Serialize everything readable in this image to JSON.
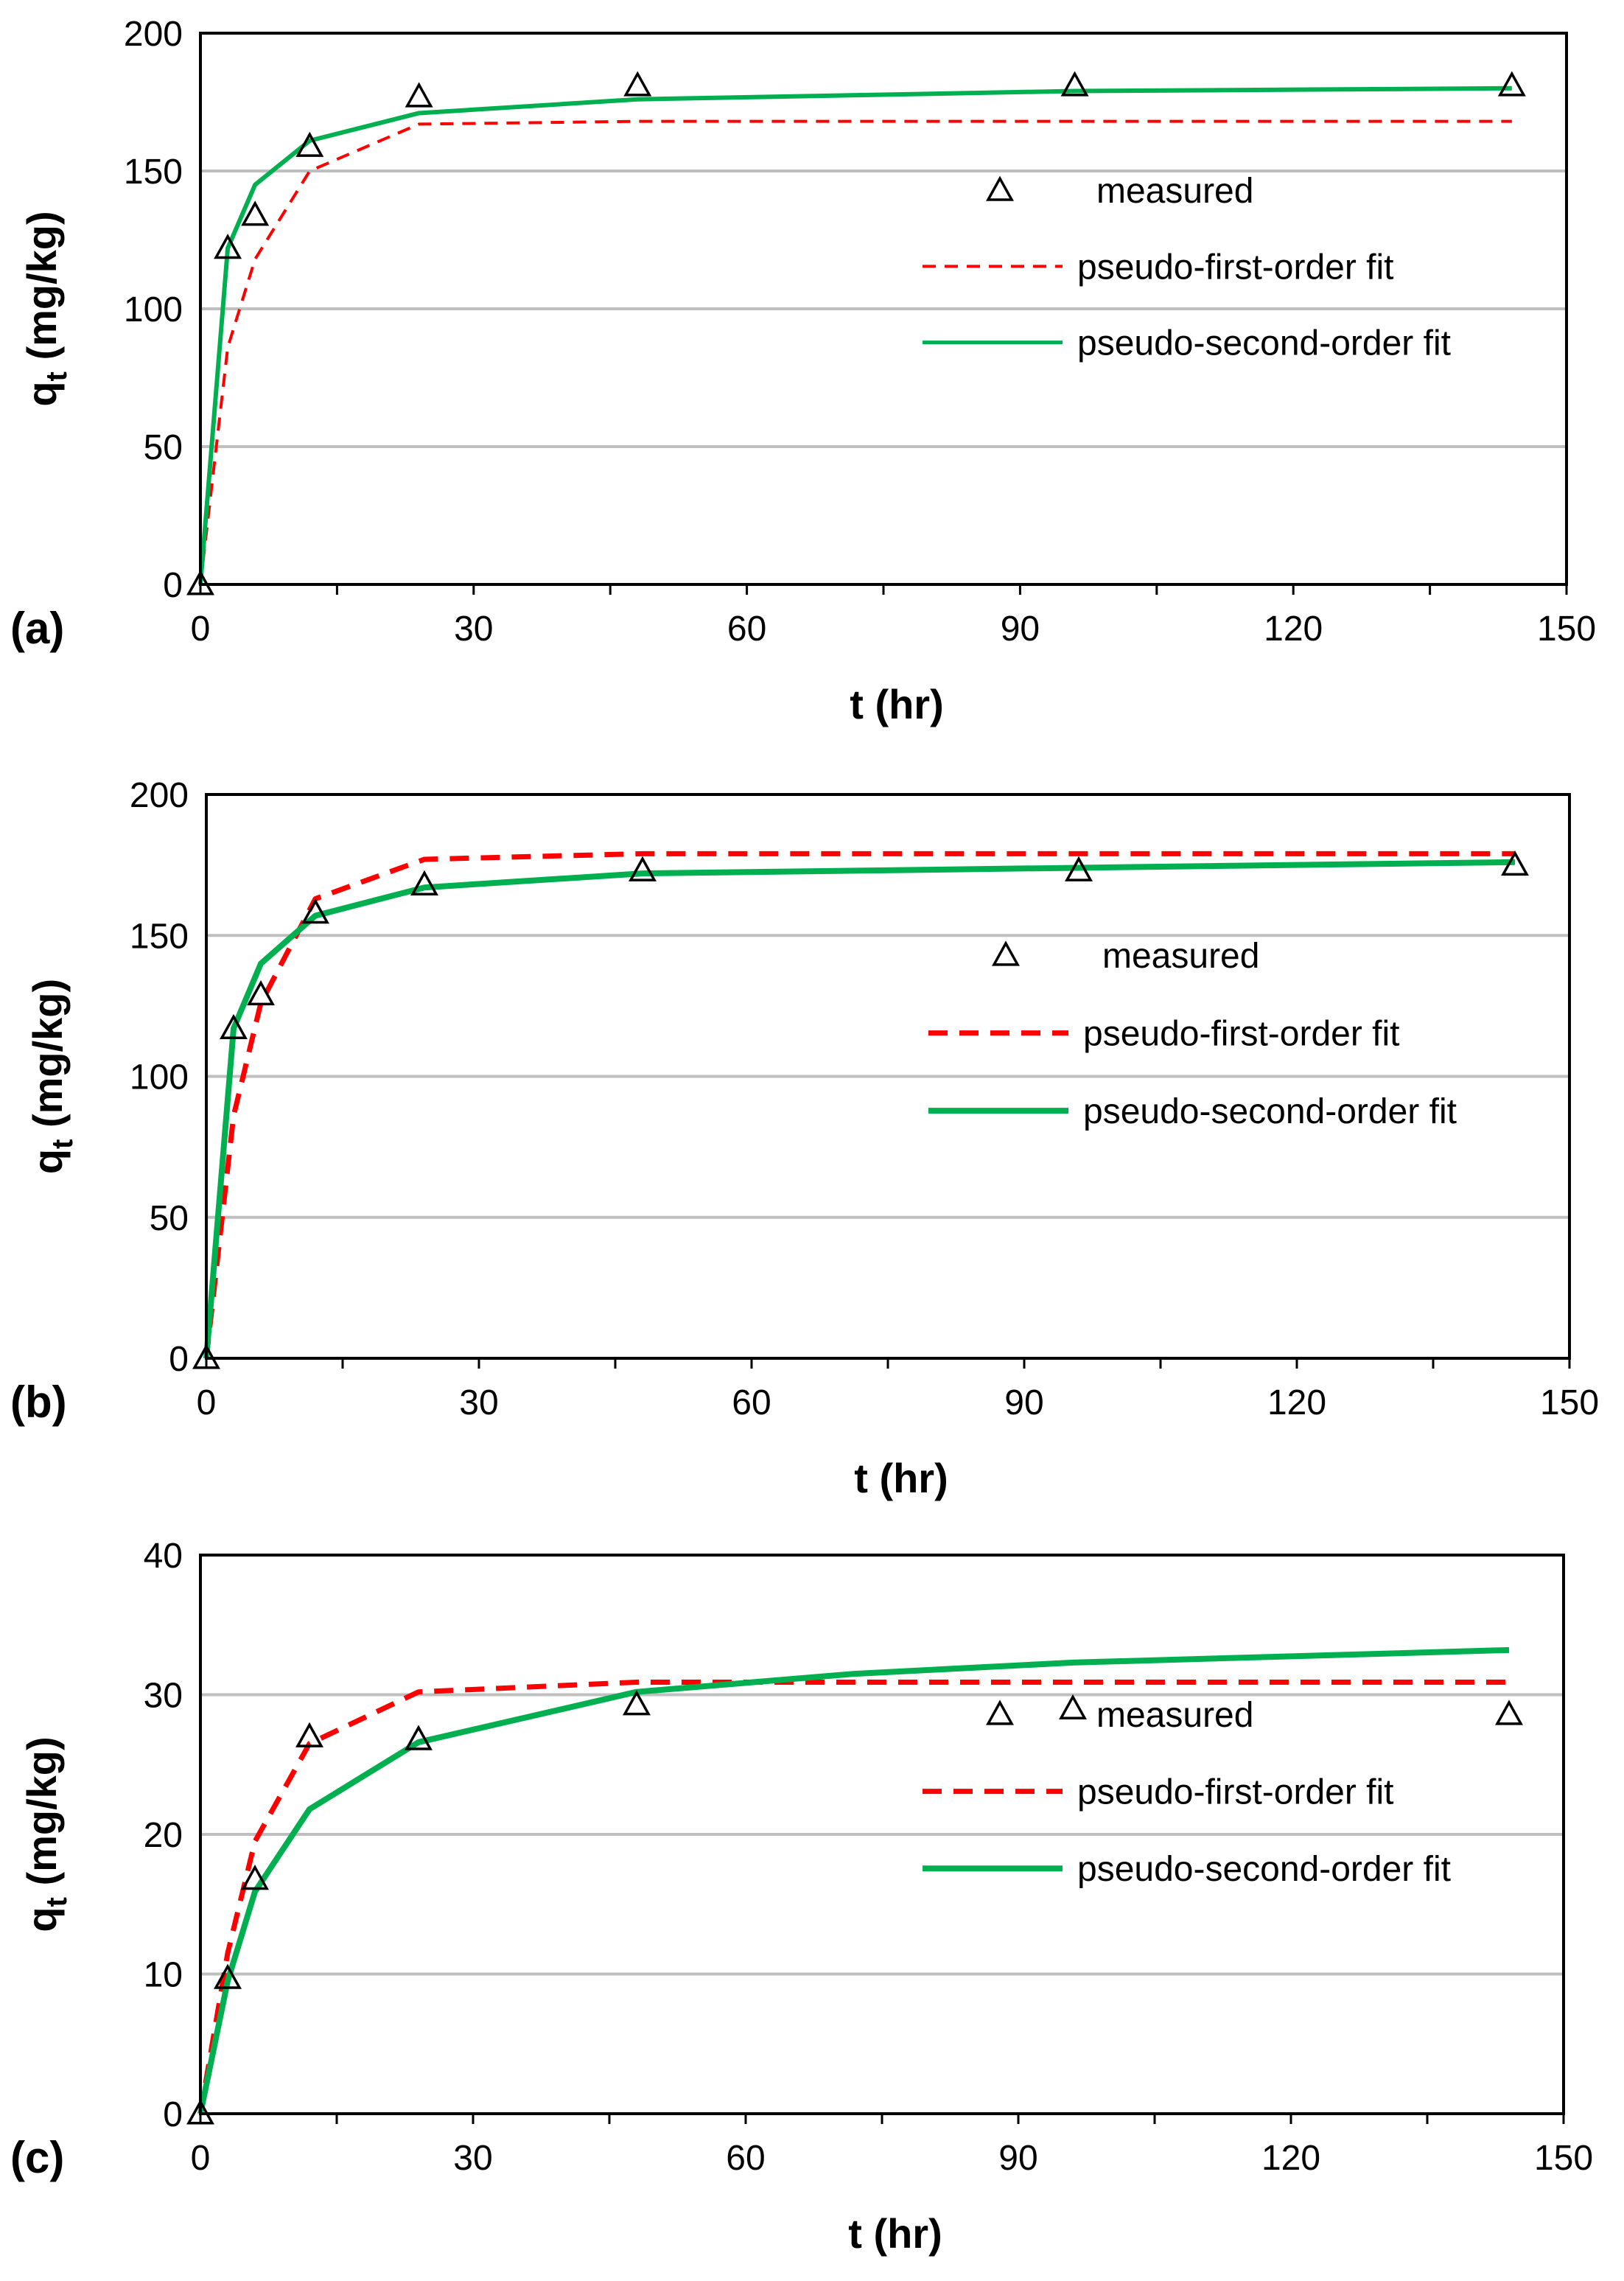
{
  "colors": {
    "measured": "#000000",
    "first_order": "#ff0000",
    "second_order": "#00b050",
    "grid": "#bfbfbf",
    "axes": "#000000"
  },
  "chart_data": [
    {
      "panel_label": "(a)",
      "type": "line",
      "xlabel": "t (hr)",
      "ylabel_main": "q",
      "ylabel_sub": "t",
      "ylabel_unit": " (mg/kg)",
      "xlim": [
        0,
        150
      ],
      "ylim": [
        0,
        200
      ],
      "xticks": [
        0,
        30,
        60,
        90,
        120,
        150
      ],
      "yticks": [
        0,
        50,
        100,
        150,
        200
      ],
      "xtick_labels": [
        "0",
        "30",
        "60",
        "90",
        "120",
        "150"
      ],
      "ytick_labels": [
        "0",
        "50",
        "100",
        "150",
        "200"
      ],
      "grid": "horizontal",
      "legend_position": "center-right",
      "legend": [
        "measured",
        "pseudo-first-order fit",
        "pseudo-second-order fit"
      ],
      "line_style": "thin",
      "series": [
        {
          "name": "measured",
          "kind": "marker",
          "x": [
            0,
            3,
            6,
            12,
            24,
            48,
            96,
            144
          ],
          "y": [
            0,
            122,
            134,
            159,
            177,
            181,
            181,
            181
          ]
        },
        {
          "name": "pseudo-first-order fit",
          "kind": "dashed",
          "x": [
            0,
            3,
            6,
            12,
            24,
            48,
            96,
            144
          ],
          "y": [
            0,
            86,
            118,
            150,
            167,
            168,
            168,
            168
          ]
        },
        {
          "name": "pseudo-second-order fit",
          "kind": "solid",
          "x": [
            0,
            3,
            6,
            12,
            24,
            48,
            96,
            144
          ],
          "y": [
            0,
            122,
            145,
            161,
            171,
            176,
            179,
            180
          ]
        }
      ]
    },
    {
      "panel_label": "(b)",
      "type": "line",
      "xlabel": "t (hr)",
      "ylabel_main": "q",
      "ylabel_sub": "t",
      "ylabel_unit": " (mg/kg)",
      "xlim": [
        0,
        150
      ],
      "ylim": [
        0,
        200
      ],
      "xticks": [
        0,
        30,
        60,
        90,
        120,
        150
      ],
      "yticks": [
        0,
        50,
        100,
        150,
        200
      ],
      "xtick_labels": [
        "0",
        "30",
        "60",
        "90",
        "120",
        "150"
      ],
      "ytick_labels": [
        "0",
        "50",
        "100",
        "150",
        "200"
      ],
      "grid": "horizontal",
      "legend_position": "center-right",
      "legend": [
        "measured",
        "pseudo-first-order fit",
        "pseudo-second-order fit"
      ],
      "line_style": "thick",
      "series": [
        {
          "name": "measured",
          "kind": "marker",
          "x": [
            0,
            3,
            6,
            12,
            24,
            48,
            96,
            144
          ],
          "y": [
            0,
            117,
            129,
            158,
            168,
            173,
            173,
            175
          ]
        },
        {
          "name": "pseudo-first-order fit",
          "kind": "dashed",
          "x": [
            0,
            3,
            6,
            12,
            24,
            48,
            96,
            144
          ],
          "y": [
            0,
            86,
            126,
            163,
            177,
            179,
            179,
            179
          ]
        },
        {
          "name": "pseudo-second-order fit",
          "kind": "solid",
          "x": [
            0,
            3,
            6,
            12,
            24,
            48,
            96,
            144
          ],
          "y": [
            0,
            117,
            140,
            157,
            167,
            172,
            174,
            176
          ]
        }
      ]
    },
    {
      "panel_label": "(c)",
      "type": "line",
      "xlabel": "t (hr)",
      "ylabel_main": "q",
      "ylabel_sub": "t",
      "ylabel_unit": " (mg/kg)",
      "xlim": [
        0,
        150
      ],
      "ylim": [
        0,
        40
      ],
      "xticks": [
        0,
        30,
        60,
        90,
        120,
        150
      ],
      "yticks": [
        0,
        10,
        20,
        30,
        40
      ],
      "xtick_labels": [
        "0",
        "30",
        "60",
        "90",
        "120",
        "150"
      ],
      "ytick_labels": [
        "0",
        "10",
        "20",
        "30",
        "40"
      ],
      "grid": "horizontal",
      "legend_position": "center-right",
      "legend": [
        "measured",
        "pseudo-first-order fit",
        "pseudo-second-order fit"
      ],
      "line_style": "thick",
      "series": [
        {
          "name": "measured",
          "kind": "marker",
          "x": [
            0,
            3,
            6,
            12,
            24,
            48,
            96,
            144
          ],
          "y": [
            0,
            9.7,
            16.8,
            27,
            26.8,
            29.3,
            29,
            28.6
          ]
        },
        {
          "name": "pseudo-first-order fit",
          "kind": "dashed",
          "x": [
            0,
            3,
            6,
            12,
            24,
            48,
            96,
            144
          ],
          "y": [
            0,
            11.5,
            19.5,
            26.5,
            30.2,
            30.9,
            30.9,
            30.9
          ]
        },
        {
          "name": "pseudo-second-order fit",
          "kind": "solid",
          "x": [
            0,
            3,
            6,
            12,
            24,
            48,
            72,
            96,
            144
          ],
          "y": [
            0,
            9.5,
            15.9,
            21.8,
            26.6,
            30.2,
            31.5,
            32.3,
            33.2
          ]
        }
      ]
    }
  ]
}
